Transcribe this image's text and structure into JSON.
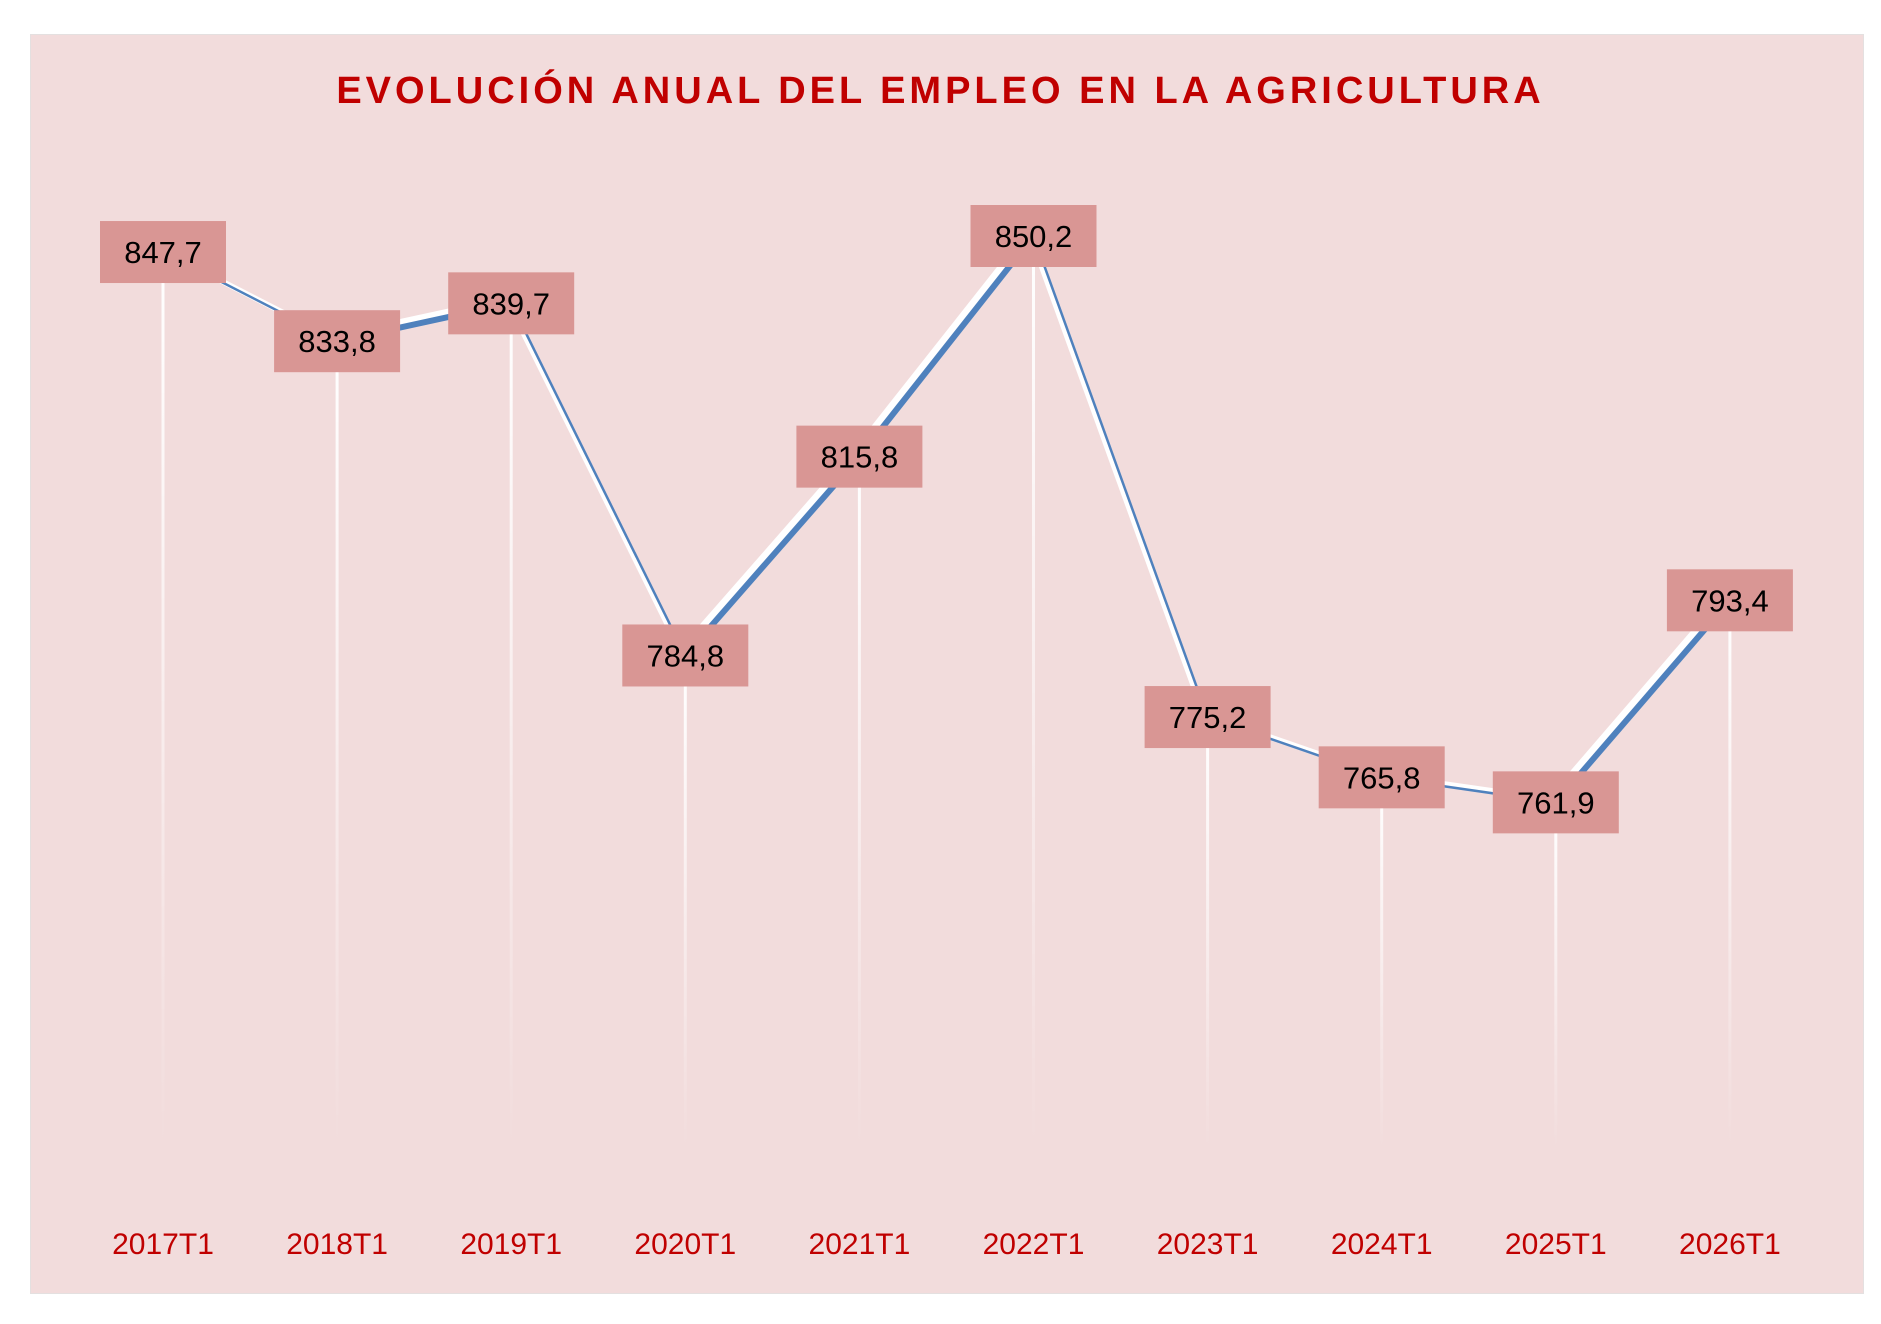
{
  "chart_data": {
    "type": "line",
    "title": "EVOLUCIÓN ANUAL DEL EMPLEO EN LA AGRICULTURA",
    "categories": [
      "2017T1",
      "2018T1",
      "2019T1",
      "2020T1",
      "2021T1",
      "2022T1",
      "2023T1",
      "2024T1",
      "2025T1",
      "2026T1"
    ],
    "values": [
      847.7,
      833.8,
      839.7,
      784.8,
      815.8,
      850.2,
      775.2,
      765.8,
      761.9,
      793.4
    ],
    "value_labels": [
      "847,7",
      "833,8",
      "839,7",
      "784,8",
      "815,8",
      "850,2",
      "775,2",
      "765,8",
      "761,9",
      "793,4"
    ],
    "xlabel": "",
    "ylabel": "",
    "grid": false,
    "legend": "none",
    "colors": {
      "line": "#4f81bd",
      "label_box": "#d99694",
      "background": "#f2dcdc",
      "title": "#c00000",
      "axis_text": "#c00000"
    }
  }
}
